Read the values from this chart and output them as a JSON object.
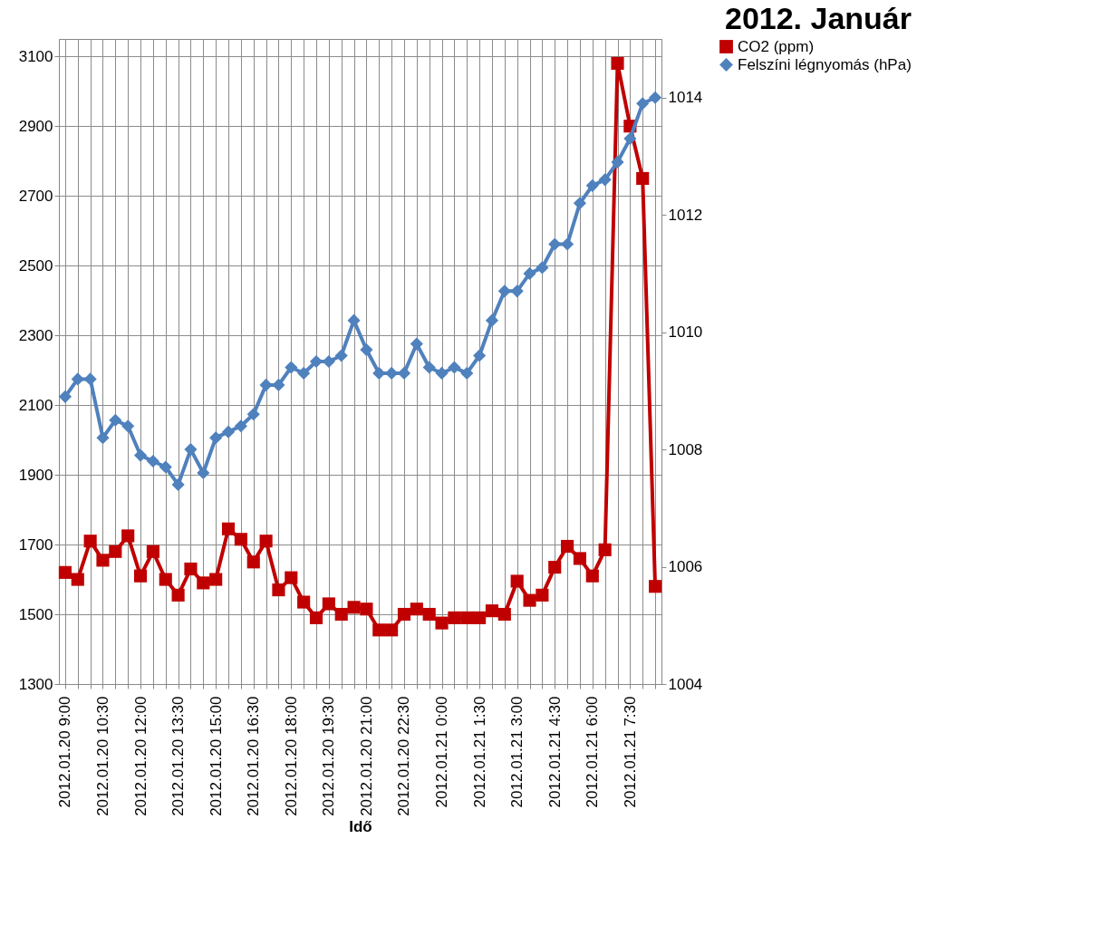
{
  "chart_data": {
    "type": "line",
    "title": "2012. Január",
    "xlabel": "Idő",
    "categories": [
      "2012.01.20 9:00",
      null,
      null,
      "2012.01.20 10:30",
      null,
      null,
      "2012.01.20 12:00",
      null,
      null,
      "2012.01.20 13:30",
      null,
      null,
      "2012.01.20 15:00",
      null,
      null,
      "2012.01.20 16:30",
      null,
      null,
      "2012.01.20 18:00",
      null,
      null,
      "2012.01.20 19:30",
      null,
      null,
      "2012.01.20 21:00",
      null,
      null,
      "2012.01.20 22:30",
      null,
      null,
      "2012.01.21 0:00",
      null,
      null,
      "2012.01.21 1:30",
      null,
      null,
      "2012.01.21 3:00",
      null,
      null,
      "2012.01.21 4:30",
      null,
      null,
      "2012.01.21 6:00",
      null,
      null,
      "2012.01.21 7:30",
      null,
      null
    ],
    "series": [
      {
        "name": "CO2 (ppm)",
        "color": "#c00000",
        "marker": "square",
        "values": [
          1620,
          1600,
          1710,
          1655,
          1680,
          1725,
          1610,
          1680,
          1600,
          1555,
          1630,
          1590,
          1600,
          1745,
          1715,
          1650,
          1710,
          1570,
          1605,
          1535,
          1490,
          1530,
          1500,
          1520,
          1515,
          1455,
          1455,
          1500,
          1515,
          1500,
          1475,
          1490,
          1490,
          1490,
          1510,
          1500,
          1595,
          1540,
          1555,
          1635,
          1695,
          1660,
          1610,
          1685,
          3080,
          2900,
          2750,
          1580
        ]
      },
      {
        "name": "Felszíni légnyomás (hPa)",
        "color": "#4f81bd",
        "marker": "diamond",
        "axis": "y2",
        "values": [
          1008.9,
          1009.2,
          1009.2,
          1008.2,
          1008.5,
          1008.4,
          1007.9,
          1007.8,
          1007.7,
          1007.4,
          1008.0,
          1007.6,
          1008.2,
          1008.3,
          1008.4,
          1008.6,
          1009.1,
          1009.1,
          1009.4,
          1009.3,
          1009.5,
          1009.5,
          1009.6,
          1010.2,
          1009.7,
          1009.3,
          1009.3,
          1009.3,
          1009.8,
          1009.4,
          1009.3,
          1009.4,
          1009.3,
          1009.6,
          1010.2,
          1010.7,
          1010.7,
          1011.0,
          1011.1,
          1011.5,
          1011.5,
          1012.2,
          1012.5,
          1012.6,
          1012.9,
          1013.3,
          1013.9,
          1014.0
        ]
      }
    ],
    "ylim": [
      1300,
      3150
    ],
    "yticks": [
      1300,
      1500,
      1700,
      1900,
      2100,
      2300,
      2500,
      2700,
      2900,
      3100
    ],
    "y2lim": [
      1004,
      1015
    ],
    "y2ticks": [
      1004,
      1006,
      1008,
      1010,
      1012,
      1014
    ],
    "grid": true,
    "legend": "right",
    "line_style": "solid"
  }
}
